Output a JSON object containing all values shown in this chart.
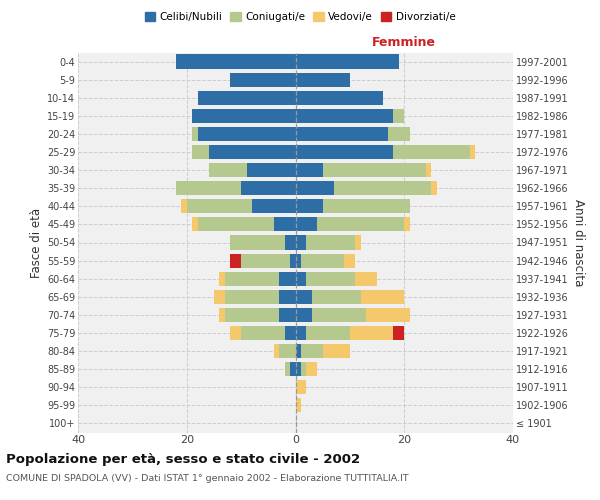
{
  "age_groups": [
    "100+",
    "95-99",
    "90-94",
    "85-89",
    "80-84",
    "75-79",
    "70-74",
    "65-69",
    "60-64",
    "55-59",
    "50-54",
    "45-49",
    "40-44",
    "35-39",
    "30-34",
    "25-29",
    "20-24",
    "15-19",
    "10-14",
    "5-9",
    "0-4"
  ],
  "birth_years": [
    "≤ 1901",
    "1902-1906",
    "1907-1911",
    "1912-1916",
    "1917-1921",
    "1922-1926",
    "1927-1931",
    "1932-1936",
    "1937-1941",
    "1942-1946",
    "1947-1951",
    "1952-1956",
    "1957-1961",
    "1962-1966",
    "1967-1971",
    "1972-1976",
    "1977-1981",
    "1982-1986",
    "1987-1991",
    "1992-1996",
    "1997-2001"
  ],
  "males": {
    "celibe": [
      0,
      0,
      0,
      1,
      0,
      2,
      3,
      3,
      3,
      1,
      2,
      4,
      8,
      10,
      9,
      16,
      18,
      19,
      18,
      12,
      22
    ],
    "coniugato": [
      0,
      0,
      0,
      1,
      3,
      8,
      10,
      10,
      10,
      9,
      10,
      14,
      12,
      12,
      7,
      3,
      1,
      0,
      0,
      0,
      0
    ],
    "vedovo": [
      0,
      0,
      0,
      0,
      1,
      2,
      1,
      2,
      1,
      0,
      0,
      1,
      1,
      0,
      0,
      0,
      0,
      0,
      0,
      0,
      0
    ],
    "divorziato": [
      0,
      0,
      0,
      0,
      0,
      0,
      0,
      0,
      0,
      2,
      0,
      0,
      0,
      0,
      0,
      0,
      0,
      0,
      0,
      0,
      0
    ]
  },
  "females": {
    "nubile": [
      0,
      0,
      0,
      1,
      1,
      2,
      3,
      3,
      2,
      1,
      2,
      4,
      5,
      7,
      5,
      18,
      17,
      18,
      16,
      10,
      19
    ],
    "coniugata": [
      0,
      0,
      0,
      1,
      4,
      8,
      10,
      9,
      9,
      8,
      9,
      16,
      16,
      18,
      19,
      14,
      4,
      2,
      0,
      0,
      0
    ],
    "vedova": [
      0,
      1,
      2,
      2,
      5,
      8,
      8,
      8,
      4,
      2,
      1,
      1,
      0,
      1,
      1,
      1,
      0,
      0,
      0,
      0,
      0
    ],
    "divorziata": [
      0,
      0,
      0,
      0,
      0,
      2,
      0,
      0,
      0,
      0,
      0,
      0,
      0,
      0,
      0,
      0,
      0,
      0,
      0,
      0,
      0
    ]
  },
  "colors": {
    "celibe": "#2e6ea6",
    "coniugato": "#b5c98e",
    "vedovo": "#f5c96b",
    "divorziato": "#cc2222"
  },
  "xlim": 40,
  "title": "Popolazione per età, sesso e stato civile - 2002",
  "subtitle": "COMUNE DI SPADOLA (VV) - Dati ISTAT 1° gennaio 2002 - Elaborazione TUTTITALIA.IT",
  "ylabel_left": "Fasce di età",
  "ylabel_right": "Anni di nascita",
  "xlabel_right": "Femmine",
  "background_color": "#ffffff",
  "plot_bg_color": "#f0f0f0"
}
